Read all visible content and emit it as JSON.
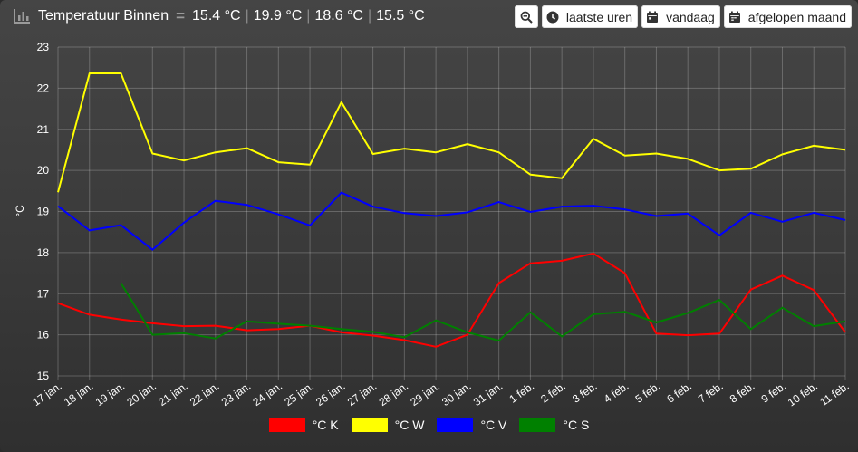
{
  "header": {
    "title": "Temperatuur Binnen",
    "readings": [
      "15.4 °C",
      "19.9 °C",
      "18.6 °C",
      "15.5 °C"
    ],
    "icon": "bar-chart-icon"
  },
  "toolbar": {
    "zoom_icon": "zoom-out-icon",
    "buttons": [
      {
        "label": "laatste uren",
        "icon": "clock-icon"
      },
      {
        "label": "vandaag",
        "icon": "calendar-icon"
      },
      {
        "label": "afgelopen maand",
        "icon": "calendar-icon"
      }
    ]
  },
  "chart_data": {
    "type": "line",
    "ylabel": "°C",
    "xlabel": "",
    "ylim": [
      15,
      23
    ],
    "yticks": [
      15,
      16,
      17,
      18,
      19,
      20,
      21,
      22,
      23
    ],
    "grid": true,
    "legend_position": "bottom-center",
    "categories": [
      "17 jan.",
      "18 jan.",
      "19 jan.",
      "20 jan.",
      "21 jan.",
      "22 jan.",
      "23 jan.",
      "24 jan.",
      "25 jan.",
      "26 jan.",
      "27 jan.",
      "28 jan.",
      "29 jan.",
      "30 jan.",
      "31 jan.",
      "1 feb.",
      "2 feb.",
      "3 feb.",
      "4 feb.",
      "5 feb.",
      "6 feb.",
      "7 feb.",
      "8 feb.",
      "9 feb.",
      "10 feb.",
      "11 feb."
    ],
    "series": [
      {
        "name": "°C K",
        "color": "#ff0000",
        "values": [
          16.77,
          16.49,
          16.37,
          16.28,
          16.21,
          16.22,
          16.11,
          16.14,
          16.22,
          16.06,
          15.98,
          15.87,
          15.71,
          16.0,
          17.26,
          17.74,
          17.8,
          17.98,
          17.5,
          16.03,
          15.99,
          16.03,
          17.1,
          17.44,
          17.09,
          16.06
        ]
      },
      {
        "name": "°C W",
        "color": "#ffff00",
        "values": [
          19.47,
          22.36,
          22.36,
          20.41,
          20.24,
          20.44,
          20.54,
          20.2,
          20.14,
          21.66,
          20.4,
          20.53,
          20.44,
          20.64,
          20.44,
          19.9,
          19.81,
          20.77,
          20.36,
          20.41,
          20.28,
          20.0,
          20.04,
          20.39,
          20.6,
          20.5
        ]
      },
      {
        "name": "°C V",
        "color": "#0000ff",
        "values": [
          19.13,
          18.54,
          18.67,
          18.07,
          18.73,
          19.26,
          19.16,
          18.93,
          18.66,
          19.46,
          19.12,
          18.96,
          18.89,
          18.98,
          19.23,
          18.99,
          19.12,
          19.14,
          19.05,
          18.89,
          18.95,
          18.42,
          18.97,
          18.75,
          18.97,
          18.79
        ]
      },
      {
        "name": "°C S",
        "color": "#008000",
        "values": [
          null,
          null,
          17.26,
          16.0,
          16.04,
          15.91,
          16.33,
          16.27,
          16.22,
          16.14,
          16.07,
          15.94,
          16.35,
          16.06,
          15.86,
          16.55,
          15.96,
          16.5,
          16.56,
          16.3,
          16.53,
          16.85,
          16.14,
          16.66,
          16.21,
          16.33
        ]
      }
    ]
  }
}
